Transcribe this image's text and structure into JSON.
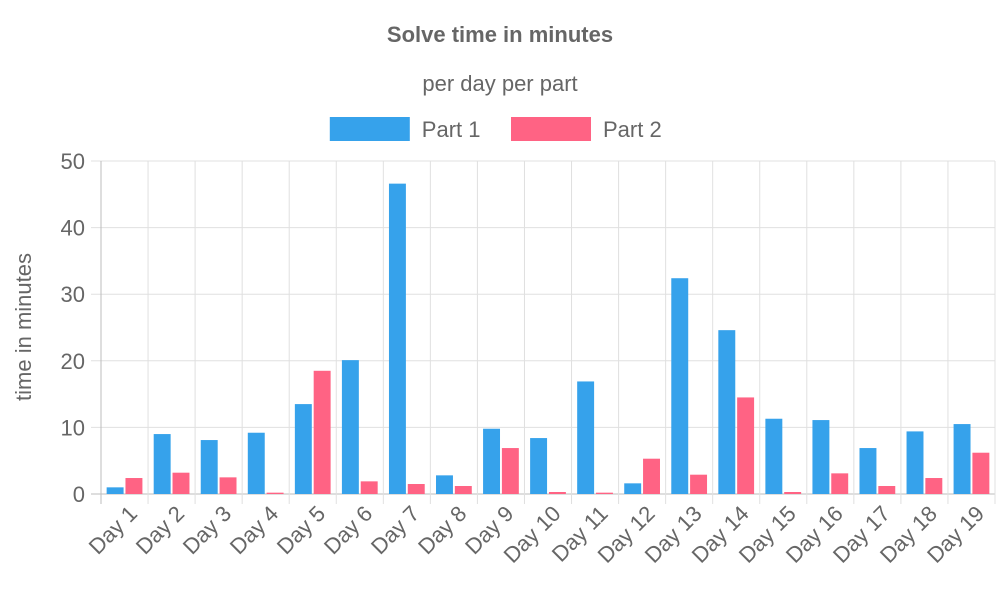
{
  "chart_data": {
    "type": "bar",
    "title": "Solve time in minutes",
    "subtitle": "per day per part",
    "ylabel": "time in minutes",
    "xlabel": "",
    "ylim": [
      0,
      50
    ],
    "yticks": [
      0,
      10,
      20,
      30,
      40,
      50
    ],
    "grid": true,
    "legend_position": "top",
    "categories": [
      "Day 1",
      "Day 2",
      "Day 3",
      "Day 4",
      "Day 5",
      "Day 6",
      "Day 7",
      "Day 8",
      "Day 9",
      "Day 10",
      "Day 11",
      "Day 12",
      "Day 13",
      "Day 14",
      "Day 15",
      "Day 16",
      "Day 17",
      "Day 18",
      "Day 19"
    ],
    "series": [
      {
        "name": "Part 1",
        "color": "#36a2eb",
        "values": [
          1.0,
          9.0,
          8.1,
          9.2,
          13.5,
          20.1,
          46.6,
          2.8,
          9.8,
          8.4,
          16.9,
          1.6,
          32.4,
          24.6,
          11.3,
          11.1,
          6.9,
          9.4,
          10.5
        ]
      },
      {
        "name": "Part 2",
        "color": "#ff6384",
        "values": [
          2.4,
          3.2,
          2.5,
          0.2,
          18.5,
          1.9,
          1.5,
          1.2,
          6.9,
          0.3,
          0.2,
          5.3,
          2.9,
          14.5,
          0.3,
          3.1,
          1.2,
          2.4,
          6.2
        ]
      }
    ]
  }
}
